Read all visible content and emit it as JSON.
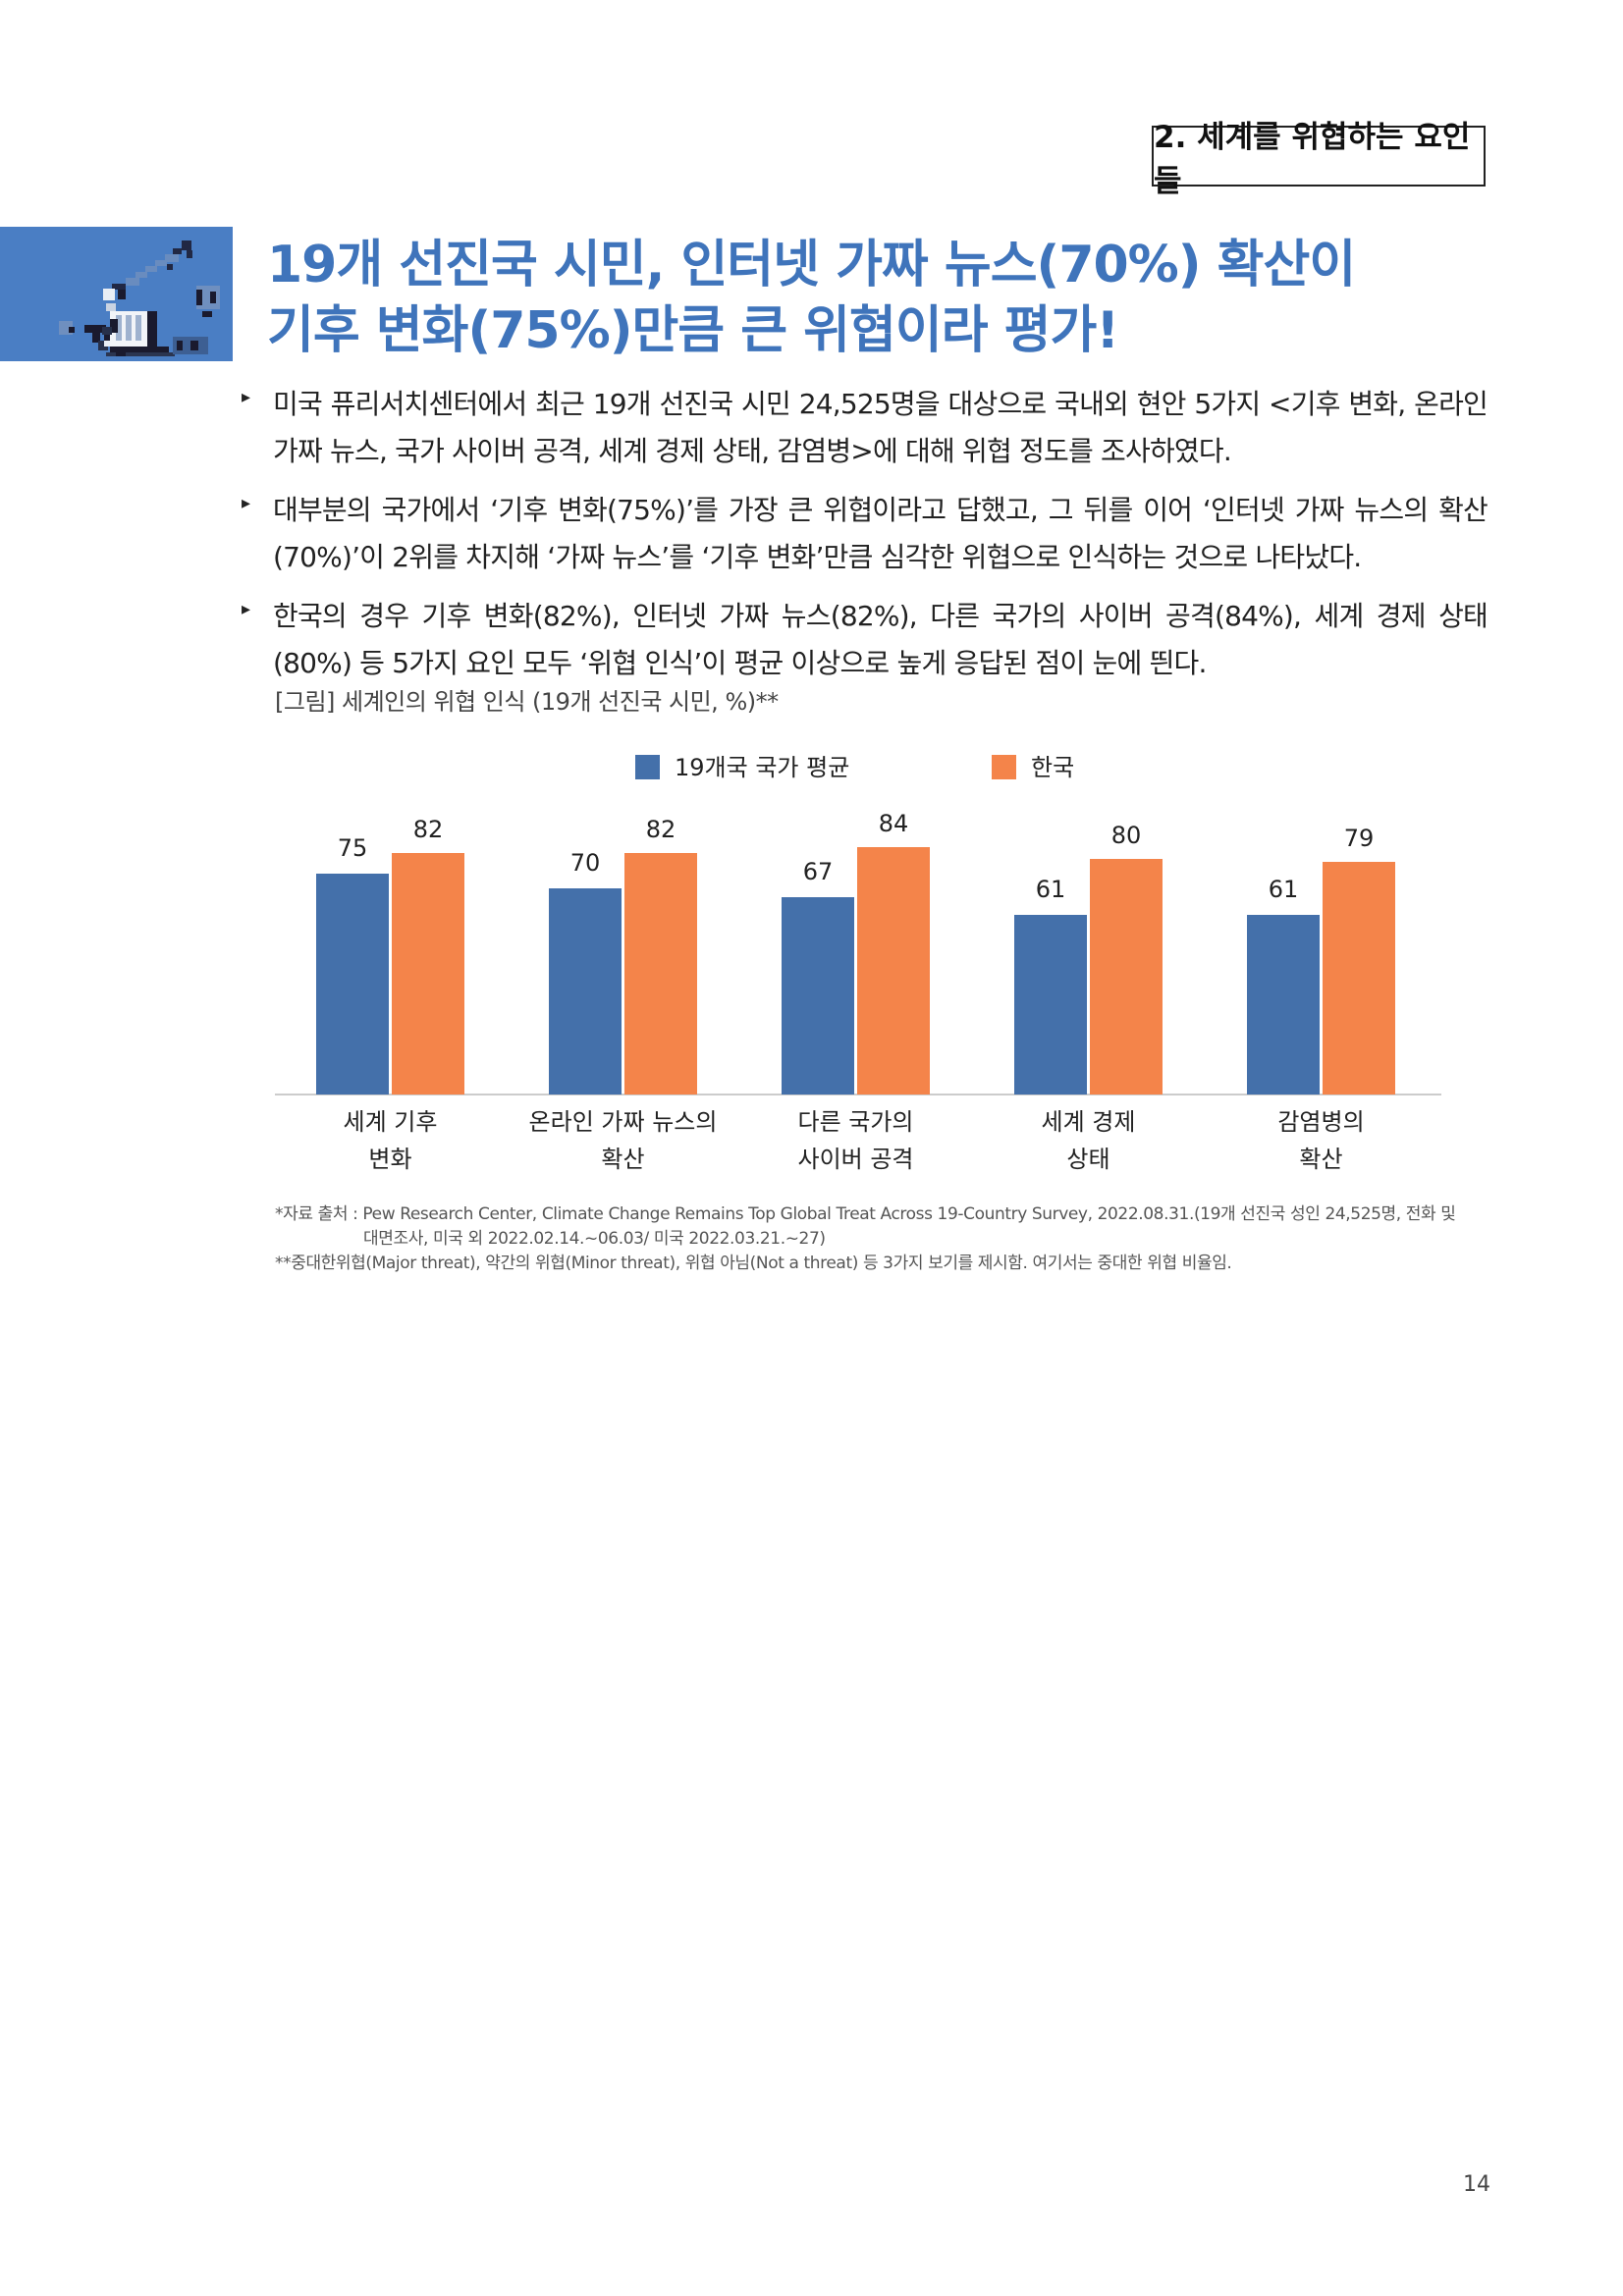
{
  "section_tag": "2. 세계를 위협하는 요인들",
  "title": {
    "line1": "19개 선진국 시민, 인터넷 가짜 뉴스(70%) 확산이",
    "line2": "기후 변화(75%)만큼 큰 위협이라 평가!"
  },
  "bullets": [
    "미국 퓨리서치센터에서 최근 19개 선진국 시민 24,525명을 대상으로 국내외 현안 5가지 <기후 변화, 온라인 가짜 뉴스, 국가 사이버 공격, 세계 경제 상태, 감염병>에 대해 위협 정도를 조사하였다.",
    "대부분의 국가에서 ‘기후 변화(75%)’를 가장 큰 위협이라고 답했고, 그 뒤를 이어 ‘인터넷 가짜 뉴스의 확산(70%)’이 2위를 차지해 ‘가짜 뉴스’를 ‘기후 변화’만큼 심각한 위협으로 인식하는 것으로 나타났다.",
    "한국의 경우 기후 변화(82%), 인터넷 가짜 뉴스(82%), 다른 국가의 사이버 공격(84%), 세계 경제 상태(80%) 등 5가지 요인 모두 ‘위협 인식’이 평균 이상으로 높게 응답된 점이 눈에 띈다."
  ],
  "figure_caption": "[그림] 세계인의 위협 인식 (19개 선진국 시민, %)**",
  "chart_data": {
    "type": "bar",
    "title": "",
    "xlabel": "",
    "ylabel": "",
    "ylim": [
      0,
      100
    ],
    "grid": false,
    "legend_position": "top-center",
    "categories": [
      [
        "세계 기후",
        "변화"
      ],
      [
        "온라인 가짜 뉴스의",
        "확산"
      ],
      [
        "다른 국가의",
        "사이버 공격"
      ],
      [
        "세계 경제",
        "상태"
      ],
      [
        "감염병의",
        "확산"
      ]
    ],
    "series": [
      {
        "name": "19개국 국가 평균",
        "color": "#4470aa",
        "values": [
          75,
          70,
          67,
          61,
          61
        ]
      },
      {
        "name": "한국",
        "color": "#f4844a",
        "values": [
          82,
          82,
          84,
          80,
          79
        ]
      }
    ]
  },
  "notes": {
    "source_line1": "*자료 출처 : Pew Research Center, Climate Change Remains Top Global Treat Across 19-Country Survey, 2022.08.31.(19개 선진국 성인 24,525명, 전화 및",
    "source_line2": "대면조사, 미국 외 2022.02.14.~06.03/ 미국 2022.03.21.~27)",
    "threat_note": "**중대한위협(Major threat), 약간의 위협(Minor threat), 위협 아님(Not a threat) 등 3가지 보기를 제시함. 여기서는 중대한 위협 비율임."
  },
  "page_number": "14"
}
